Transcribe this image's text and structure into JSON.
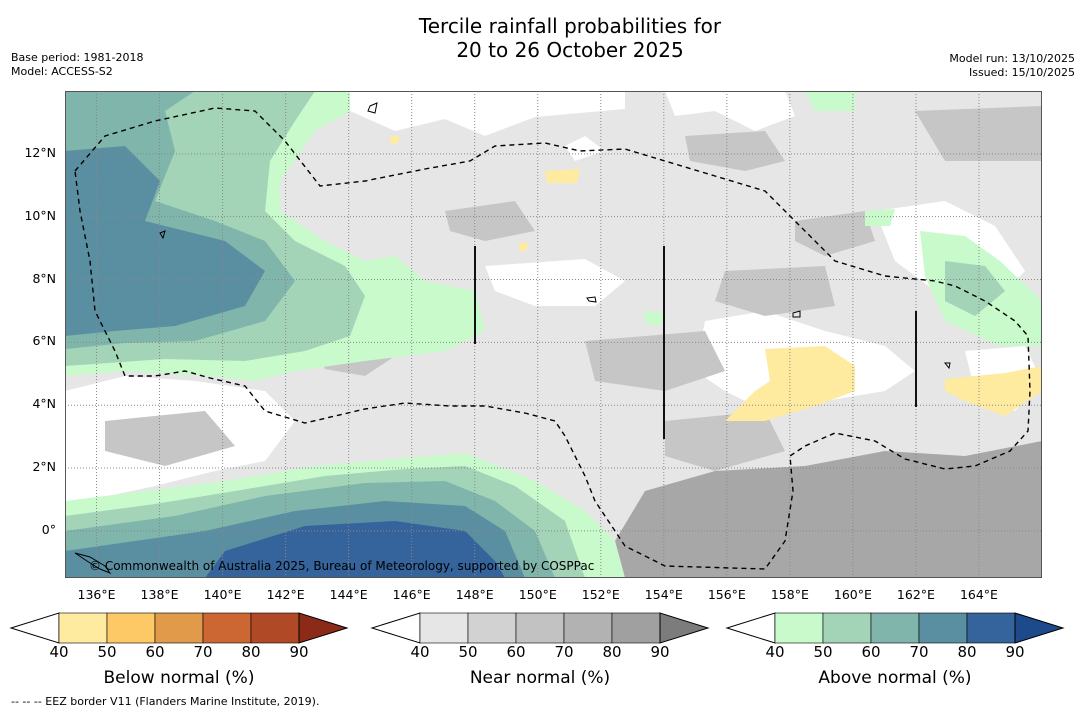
{
  "title": {
    "line1": "Tercile rainfall probabilities for",
    "line2": "20 to 26 October 2025"
  },
  "meta_left": {
    "base_period": "Base period: 1981-2018",
    "model": "Model: ACCESS-S2"
  },
  "meta_right": {
    "model_run": "Model run: 13/10/2025",
    "issued": "Issued: 15/10/2025"
  },
  "map": {
    "lon_range": [
      135,
      166
    ],
    "lat_range": [
      -1.5,
      14
    ],
    "x_ticks": [
      "136°E",
      "138°E",
      "140°E",
      "142°E",
      "144°E",
      "146°E",
      "148°E",
      "150°E",
      "152°E",
      "154°E",
      "156°E",
      "158°E",
      "160°E",
      "162°E",
      "164°E"
    ],
    "x_tick_values": [
      136,
      138,
      140,
      142,
      144,
      146,
      148,
      150,
      152,
      154,
      156,
      158,
      160,
      162,
      164
    ],
    "y_ticks": [
      "12°N",
      "10°N",
      "8°N",
      "6°N",
      "4°N",
      "2°N",
      "0°"
    ],
    "y_tick_values": [
      12,
      10,
      8,
      6,
      4,
      2,
      0
    ],
    "copyright": "© Commonwealth of Australia 2025, Bureau of Meteorology, supported by COSPPac"
  },
  "colorbars": [
    {
      "name": "below",
      "title": "Below normal (%)",
      "labels": [
        "40",
        "50",
        "60",
        "70",
        "80",
        "90"
      ],
      "colors": [
        "#ffffff",
        "#feeba0",
        "#fdc866",
        "#e09a4a",
        "#cc6633",
        "#b04a26",
        "#8b2a17"
      ]
    },
    {
      "name": "near",
      "title": "Near normal (%)",
      "labels": [
        "40",
        "50",
        "60",
        "70",
        "80",
        "90"
      ],
      "colors": [
        "#ffffff",
        "#e6e6e6",
        "#d2d2d2",
        "#c2c2c2",
        "#b2b2b2",
        "#a0a0a0",
        "#7c7c7c"
      ]
    },
    {
      "name": "above",
      "title": "Above normal (%)",
      "labels": [
        "40",
        "50",
        "60",
        "70",
        "80",
        "90"
      ],
      "colors": [
        "#ffffff",
        "#c8facb",
        "#a3d4b8",
        "#7fb5ab",
        "#5a8fa2",
        "#34649b",
        "#1c4a8a"
      ]
    }
  ],
  "footnote": "--  --  -- EEZ border V11 (Flanders Marine Institute, 2019)."
}
